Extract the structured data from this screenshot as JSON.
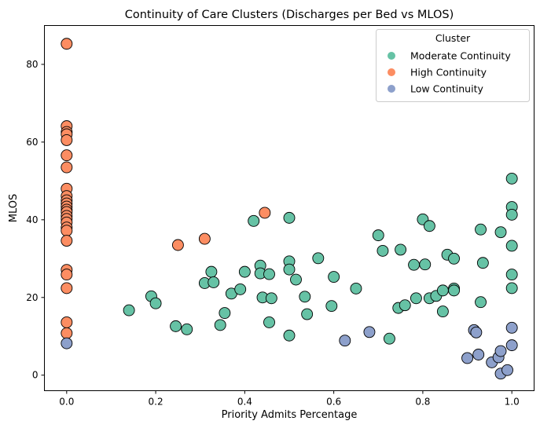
{
  "chart_data": {
    "type": "scatter",
    "title": "Continuity of Care Clusters (Discharges per Bed vs MLOS)",
    "xlabel": "Priority Admits Percentage",
    "ylabel": "MLOS",
    "xlim": [
      -0.05,
      1.05
    ],
    "ylim": [
      -4,
      90
    ],
    "xticks": [
      0.0,
      0.2,
      0.4,
      0.6,
      0.8,
      1.0
    ],
    "xtick_labels": [
      "0.0",
      "0.2",
      "0.4",
      "0.6",
      "0.8",
      "1.0"
    ],
    "yticks": [
      0,
      20,
      40,
      60,
      80
    ],
    "ytick_labels": [
      "0",
      "20",
      "40",
      "60",
      "80"
    ],
    "grid": false,
    "legend": {
      "title": "Cluster",
      "placement": "top-right"
    },
    "series": [
      {
        "name": "Moderate Continuity",
        "color": "#66c2a5",
        "points": [
          [
            0.14,
            16.7
          ],
          [
            0.19,
            20.3
          ],
          [
            0.2,
            18.5
          ],
          [
            0.245,
            12.6
          ],
          [
            0.27,
            11.8
          ],
          [
            0.31,
            23.7
          ],
          [
            0.325,
            26.6
          ],
          [
            0.33,
            23.9
          ],
          [
            0.345,
            12.9
          ],
          [
            0.355,
            16.0
          ],
          [
            0.37,
            21.0
          ],
          [
            0.39,
            22.1
          ],
          [
            0.4,
            26.6
          ],
          [
            0.42,
            39.7
          ],
          [
            0.435,
            28.2
          ],
          [
            0.435,
            26.2
          ],
          [
            0.44,
            20.0
          ],
          [
            0.455,
            26.0
          ],
          [
            0.455,
            13.6
          ],
          [
            0.46,
            19.8
          ],
          [
            0.5,
            40.5
          ],
          [
            0.5,
            29.3
          ],
          [
            0.5,
            27.2
          ],
          [
            0.5,
            10.2
          ],
          [
            0.515,
            24.6
          ],
          [
            0.535,
            20.2
          ],
          [
            0.54,
            15.7
          ],
          [
            0.565,
            30.1
          ],
          [
            0.595,
            17.8
          ],
          [
            0.6,
            25.3
          ],
          [
            0.65,
            22.3
          ],
          [
            0.7,
            36.0
          ],
          [
            0.71,
            32.0
          ],
          [
            0.725,
            9.4
          ],
          [
            0.745,
            17.3
          ],
          [
            0.75,
            32.3
          ],
          [
            0.76,
            18.0
          ],
          [
            0.78,
            28.4
          ],
          [
            0.785,
            19.8
          ],
          [
            0.8,
            40.1
          ],
          [
            0.805,
            28.5
          ],
          [
            0.815,
            38.4
          ],
          [
            0.815,
            19.8
          ],
          [
            0.83,
            20.4
          ],
          [
            0.845,
            21.8
          ],
          [
            0.845,
            16.4
          ],
          [
            0.855,
            31.0
          ],
          [
            0.87,
            30.0
          ],
          [
            0.87,
            22.3
          ],
          [
            0.87,
            21.8
          ],
          [
            0.93,
            37.5
          ],
          [
            0.93,
            18.8
          ],
          [
            0.935,
            28.9
          ],
          [
            0.975,
            36.8
          ],
          [
            1.0,
            50.6
          ],
          [
            1.0,
            43.3
          ],
          [
            1.0,
            41.3
          ],
          [
            1.0,
            33.3
          ],
          [
            1.0,
            25.9
          ],
          [
            1.0,
            22.4
          ]
        ]
      },
      {
        "name": "High Continuity",
        "color": "#fc8d62",
        "points": [
          [
            0.0,
            85.3
          ],
          [
            0.0,
            64.1
          ],
          [
            0.0,
            62.6
          ],
          [
            0.0,
            62.0
          ],
          [
            0.0,
            60.5
          ],
          [
            0.0,
            56.6
          ],
          [
            0.0,
            53.5
          ],
          [
            0.0,
            48.0
          ],
          [
            0.0,
            46.1
          ],
          [
            0.0,
            45.0
          ],
          [
            0.0,
            44.2
          ],
          [
            0.0,
            43.4
          ],
          [
            0.0,
            42.6
          ],
          [
            0.0,
            42.0
          ],
          [
            0.0,
            41.0
          ],
          [
            0.0,
            40.2
          ],
          [
            0.0,
            39.3
          ],
          [
            0.0,
            38.0
          ],
          [
            0.0,
            37.2
          ],
          [
            0.0,
            34.6
          ],
          [
            0.0,
            27.1
          ],
          [
            0.0,
            25.9
          ],
          [
            0.0,
            22.4
          ],
          [
            0.0,
            13.6
          ],
          [
            0.0,
            10.8
          ],
          [
            0.25,
            33.5
          ],
          [
            0.31,
            35.1
          ],
          [
            0.445,
            41.8
          ]
        ]
      },
      {
        "name": "Low Continuity",
        "color": "#8da0cb",
        "points": [
          [
            0.0,
            8.2
          ],
          [
            0.625,
            8.9
          ],
          [
            0.68,
            11.1
          ],
          [
            0.9,
            4.4
          ],
          [
            0.915,
            11.6
          ],
          [
            0.92,
            11.0
          ],
          [
            0.925,
            5.3
          ],
          [
            0.955,
            3.3
          ],
          [
            0.97,
            4.6
          ],
          [
            0.975,
            6.2
          ],
          [
            0.975,
            0.4
          ],
          [
            0.99,
            1.3
          ],
          [
            1.0,
            12.2
          ],
          [
            1.0,
            7.7
          ]
        ]
      }
    ]
  }
}
